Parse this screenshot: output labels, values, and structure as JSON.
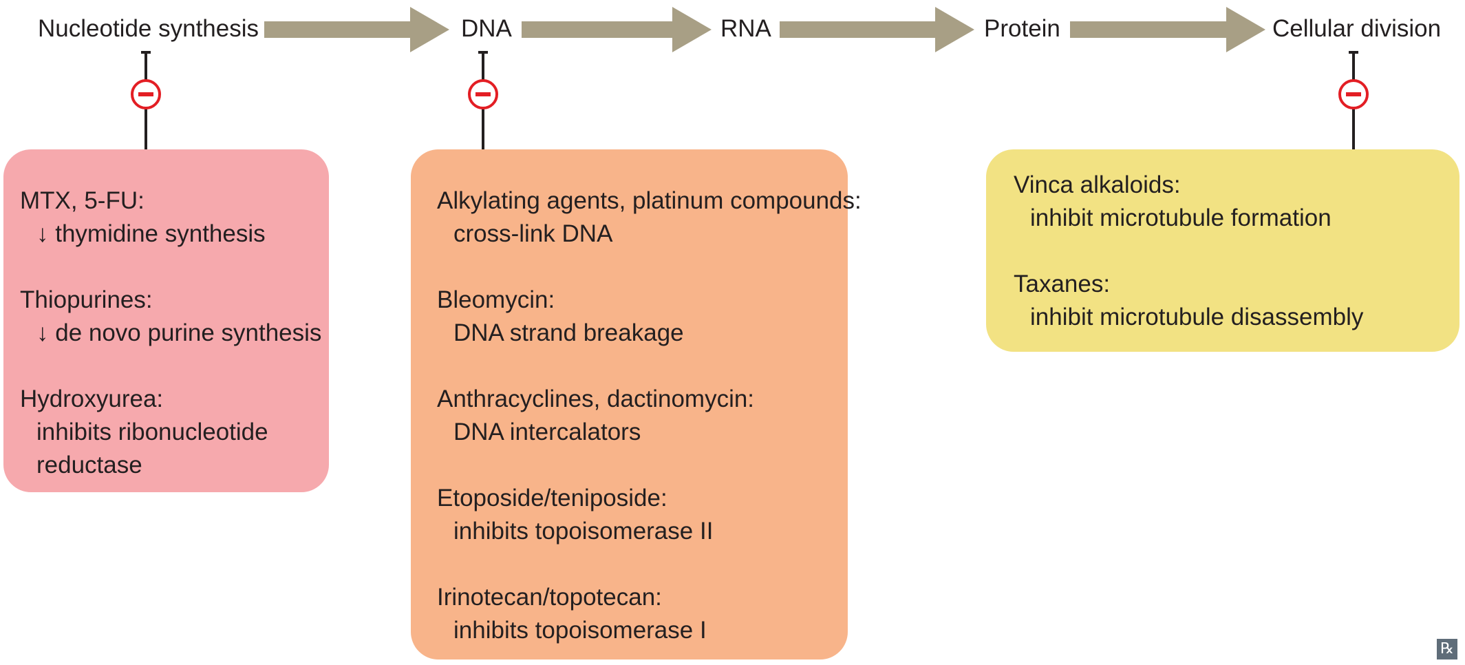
{
  "colors": {
    "arrow": "#a89f85",
    "inhibitor_red": "#e31e24",
    "box_red": "#f6a9ad",
    "box_orange": "#f8b48a",
    "box_yellow": "#f2e283",
    "text": "#231f20"
  },
  "pathway": {
    "nodes": [
      "Nucleotide synthesis",
      "DNA",
      "RNA",
      "Protein",
      "Cellular division"
    ]
  },
  "boxes": {
    "nucleotide": {
      "entries": [
        {
          "head": "MTX, 5-FU:",
          "lines": [
            "↓ thymidine synthesis"
          ]
        },
        {
          "head": "Thiopurines:",
          "lines": [
            "↓ de novo purine synthesis"
          ]
        },
        {
          "head": "Hydroxyurea:",
          "lines": [
            "inhibits ribonucleotide",
            "reductase"
          ]
        }
      ]
    },
    "dna": {
      "entries": [
        {
          "head": "Alkylating agents, platinum compounds:",
          "lines": [
            "cross-link DNA"
          ]
        },
        {
          "head": "Bleomycin:",
          "lines": [
            "DNA strand breakage"
          ]
        },
        {
          "head": "Anthracyclines, dactinomycin:",
          "lines": [
            "DNA intercalators"
          ]
        },
        {
          "head": "Etoposide/teniposide:",
          "lines": [
            "inhibits topoisomerase II"
          ]
        },
        {
          "head": "Irinotecan/topotecan:",
          "lines": [
            "inhibits topoisomerase I"
          ]
        }
      ]
    },
    "division": {
      "entries": [
        {
          "head": "Vinca alkaloids:",
          "lines": [
            "inhibit microtubule formation"
          ]
        },
        {
          "head": "Taxanes:",
          "lines": [
            "inhibit microtubule disassembly"
          ]
        }
      ]
    }
  },
  "badge": {
    "icon": "rx-icon",
    "text": "℞"
  }
}
